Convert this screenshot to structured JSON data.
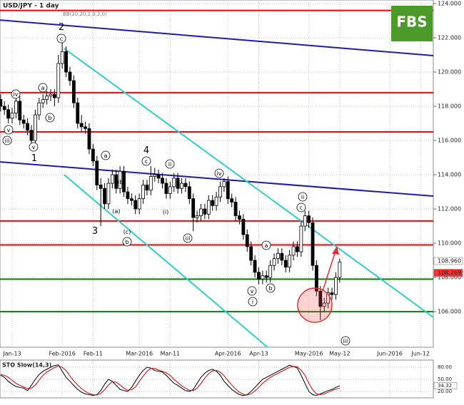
{
  "chart_data": {
    "type": "candlestick",
    "title": "USD/JPY - 1 day",
    "indicator_label": "BB(20,20,2,0,2,0)",
    "logo": "FBS",
    "candles": [
      [
        118.4,
        118.7,
        117.7,
        118.0
      ],
      [
        118.0,
        118.3,
        117.5,
        117.8
      ],
      [
        117.8,
        118.1,
        117.0,
        117.3
      ],
      [
        117.3,
        117.9,
        117.0,
        117.6
      ],
      [
        117.6,
        118.6,
        117.3,
        118.3
      ],
      [
        118.3,
        118.6,
        116.9,
        117.2
      ],
      [
        117.2,
        117.5,
        116.7,
        117.0
      ],
      [
        117.0,
        117.3,
        116.3,
        116.6
      ],
      [
        116.6,
        116.9,
        115.6,
        116.0
      ],
      [
        116.0,
        117.8,
        115.7,
        117.5
      ],
      [
        117.5,
        118.5,
        117.2,
        118.2
      ],
      [
        118.2,
        118.7,
        117.9,
        118.4
      ],
      [
        118.4,
        118.9,
        118.1,
        118.6
      ],
      [
        118.6,
        119.0,
        118.3,
        118.7
      ],
      [
        118.7,
        119.0,
        118.0,
        118.5
      ],
      [
        118.5,
        121.0,
        118.2,
        120.5
      ],
      [
        120.5,
        121.7,
        120.2,
        121.2
      ],
      [
        121.2,
        121.5,
        119.7,
        120.0
      ],
      [
        120.0,
        120.3,
        119.2,
        119.5
      ],
      [
        119.5,
        119.8,
        117.9,
        118.2
      ],
      [
        118.2,
        118.5,
        116.7,
        117.0
      ],
      [
        117.0,
        117.5,
        116.5,
        116.8
      ],
      [
        116.8,
        117.1,
        116.4,
        116.7
      ],
      [
        116.7,
        117.0,
        115.2,
        115.5
      ],
      [
        115.5,
        115.8,
        114.5,
        114.8
      ],
      [
        114.8,
        115.1,
        113.1,
        113.4
      ],
      [
        113.4,
        113.8,
        111.0,
        113.2
      ],
      [
        113.2,
        113.5,
        112.0,
        112.3
      ],
      [
        112.3,
        113.8,
        112.0,
        113.5
      ],
      [
        113.5,
        114.3,
        113.2,
        114.0
      ],
      [
        114.0,
        114.3,
        112.9,
        113.2
      ],
      [
        113.2,
        114.5,
        112.9,
        114.2
      ],
      [
        114.2,
        114.5,
        112.7,
        113.0
      ],
      [
        113.0,
        113.3,
        112.3,
        112.6
      ],
      [
        112.6,
        112.9,
        112.2,
        112.5
      ],
      [
        112.5,
        112.8,
        111.7,
        112.0
      ],
      [
        112.0,
        112.9,
        111.7,
        112.6
      ],
      [
        112.6,
        113.7,
        112.3,
        113.4
      ],
      [
        113.4,
        113.7,
        112.8,
        113.1
      ],
      [
        113.1,
        114.5,
        112.8,
        113.9
      ],
      [
        113.9,
        114.4,
        113.6,
        114.0
      ],
      [
        114.0,
        114.3,
        113.5,
        113.8
      ],
      [
        113.8,
        114.1,
        113.2,
        113.5
      ],
      [
        113.5,
        113.8,
        112.6,
        112.9
      ],
      [
        112.9,
        113.6,
        112.6,
        113.3
      ],
      [
        113.3,
        114.1,
        113.0,
        113.8
      ],
      [
        113.8,
        114.1,
        112.9,
        113.2
      ],
      [
        113.2,
        113.8,
        112.9,
        113.5
      ],
      [
        113.5,
        113.8,
        113.0,
        113.3
      ],
      [
        113.3,
        113.6,
        112.3,
        112.6
      ],
      [
        112.6,
        112.9,
        110.7,
        111.5
      ],
      [
        111.5,
        111.9,
        111.2,
        111.6
      ],
      [
        111.6,
        112.3,
        111.3,
        112.0
      ],
      [
        112.0,
        112.3,
        111.4,
        111.7
      ],
      [
        111.7,
        112.8,
        111.4,
        112.5
      ],
      [
        112.5,
        112.8,
        111.9,
        112.2
      ],
      [
        112.2,
        113.0,
        111.9,
        112.7
      ],
      [
        112.7,
        113.6,
        112.4,
        113.3
      ],
      [
        113.3,
        113.8,
        113.0,
        113.6
      ],
      [
        113.6,
        113.9,
        112.3,
        112.6
      ],
      [
        112.6,
        112.9,
        112.1,
        112.4
      ],
      [
        112.4,
        112.7,
        111.3,
        111.6
      ],
      [
        111.6,
        111.9,
        111.1,
        111.4
      ],
      [
        111.4,
        111.7,
        110.2,
        110.5
      ],
      [
        110.5,
        110.8,
        109.5,
        109.8
      ],
      [
        109.8,
        110.1,
        108.7,
        109.0
      ],
      [
        109.0,
        109.3,
        108.0,
        108.3
      ],
      [
        108.3,
        108.6,
        107.6,
        107.9
      ],
      [
        107.9,
        108.4,
        107.6,
        108.1
      ],
      [
        108.1,
        108.4,
        107.7,
        108.0
      ],
      [
        108.0,
        109.0,
        107.7,
        108.7
      ],
      [
        108.7,
        109.4,
        108.4,
        109.1
      ],
      [
        109.1,
        109.7,
        108.8,
        109.4
      ],
      [
        109.4,
        109.7,
        108.7,
        109.0
      ],
      [
        109.0,
        109.3,
        108.3,
        108.6
      ],
      [
        108.6,
        109.6,
        108.3,
        109.3
      ],
      [
        109.3,
        110.1,
        109.0,
        109.8
      ],
      [
        109.8,
        110.1,
        109.2,
        109.5
      ],
      [
        109.5,
        111.3,
        109.2,
        111.0
      ],
      [
        111.0,
        111.9,
        110.7,
        111.6
      ],
      [
        111.6,
        111.9,
        110.9,
        111.2
      ],
      [
        111.2,
        111.5,
        108.4,
        108.7
      ],
      [
        108.7,
        109.0,
        106.9,
        107.2
      ],
      [
        107.2,
        107.5,
        105.5,
        106.3
      ],
      [
        106.3,
        106.8,
        106.0,
        106.5
      ],
      [
        106.5,
        107.4,
        106.2,
        107.1
      ],
      [
        107.1,
        107.4,
        106.7,
        107.0
      ],
      [
        107.0,
        108.3,
        106.7,
        108.0
      ],
      [
        108.0,
        109.1,
        107.7,
        108.9
      ]
    ],
    "xlim": [
      -0.15,
      112.3
    ],
    "xticks": [
      {
        "value": 3,
        "label": "Jan-13"
      },
      {
        "value": 16,
        "label": "Feb-2016"
      },
      {
        "value": 24,
        "label": "Feb-11"
      },
      {
        "value": 36,
        "label": "Mar-2016"
      },
      {
        "value": 44,
        "label": "Mar-11"
      },
      {
        "value": 59,
        "label": "Apr-2016"
      },
      {
        "value": 67,
        "label": "Apr-13"
      },
      {
        "value": 80,
        "label": "May-2016"
      },
      {
        "value": 88,
        "label": "May-12"
      },
      {
        "value": 101,
        "label": "Jun-2016"
      },
      {
        "value": 109,
        "label": "Jun-12"
      }
    ],
    "ylim": [
      103.92,
      124.21
    ],
    "yticks": [
      {
        "value": 106,
        "label": "106.000"
      },
      {
        "value": 108,
        "label": "108.000"
      },
      {
        "value": 110,
        "label": "110.000"
      },
      {
        "value": 112,
        "label": "112.000"
      },
      {
        "value": 114,
        "label": "114.000"
      },
      {
        "value": 116,
        "label": "116.000"
      },
      {
        "value": 118,
        "label": "118.000"
      },
      {
        "value": 120,
        "label": "120.000"
      },
      {
        "value": 122,
        "label": "122.000"
      },
      {
        "value": 124,
        "label": "124.000"
      }
    ],
    "grid": true,
    "levels": [
      {
        "value": 123.6,
        "color": "#ff0000"
      },
      {
        "value": 118.8,
        "color": "#ff0000"
      },
      {
        "value": 116.5,
        "color": "#ff0000"
      },
      {
        "value": 111.3,
        "color": "#ff0000"
      },
      {
        "value": 109.9,
        "color": "#ff0000"
      },
      {
        "value": 107.9,
        "color": "#008000"
      },
      {
        "value": 106.0,
        "color": "#008000"
      }
    ],
    "trend_lines": [
      {
        "color": "#1c1ca8",
        "points": [
          [
            -0.15,
            123.04
          ],
          [
            112.3,
            120.96
          ]
        ]
      },
      {
        "color": "#1c1ca8",
        "points": [
          [
            -0.15,
            114.75
          ],
          [
            112.3,
            112.75
          ]
        ]
      },
      {
        "color": "#33cccc",
        "points": [
          [
            16.5,
            121.38
          ],
          [
            112.3,
            105.67
          ]
        ]
      },
      {
        "color": "#33cccc",
        "points": [
          [
            16.5,
            114.0
          ],
          [
            72.1,
            103.38
          ]
        ]
      }
    ],
    "price_tags": [
      {
        "value": 108.96,
        "label": "108.960",
        "color": "#ffffff"
      },
      {
        "value": 108.269,
        "label": "108.269",
        "color": "#ff3030"
      }
    ],
    "wave_labels": [
      "iv",
      "a",
      "b",
      "v",
      "iii",
      "v",
      "1",
      "2",
      "c",
      "a",
      "(b)",
      "(a)",
      "(c)",
      "b",
      "3",
      "4",
      "c",
      "ii",
      "(i)",
      "iii",
      "iv",
      "a",
      "b",
      "v",
      "i",
      "ii",
      "c",
      "iii"
    ],
    "stochastic": {
      "title": "STO Slow(14,3)",
      "ylim": [
        4,
        96
      ],
      "yticks": [
        {
          "value": 80,
          "label": "80.00"
        },
        {
          "value": 50,
          "label": "50.00"
        },
        {
          "value": 20,
          "label": "20.00"
        }
      ],
      "series": [
        {
          "name": "%K",
          "color": "#000000",
          "values": [
            60,
            55,
            45,
            38,
            32,
            30,
            28,
            22,
            35,
            50,
            62,
            70,
            75,
            80,
            84,
            86,
            70,
            55,
            45,
            35,
            25,
            18,
            14,
            12,
            10,
            12,
            22,
            38,
            50,
            45,
            35,
            25,
            22,
            20,
            30,
            45,
            60,
            72,
            80,
            78,
            72,
            70,
            68,
            60,
            50,
            40,
            35,
            28,
            22,
            20,
            25,
            40,
            55,
            65,
            72,
            75,
            70,
            60,
            45,
            35,
            25,
            18,
            12,
            10,
            12,
            20,
            30,
            40,
            50,
            55,
            60,
            65,
            70,
            75,
            80,
            85,
            82,
            78,
            60,
            40,
            20,
            12,
            10,
            14,
            18,
            22,
            25,
            30,
            34
          ]
        },
        {
          "name": "%D",
          "color": "#cc0000",
          "values": [
            62,
            60,
            55,
            48,
            40,
            35,
            31,
            27,
            28,
            36,
            48,
            60,
            68,
            74,
            79,
            83,
            80,
            72,
            58,
            46,
            36,
            27,
            20,
            15,
            12,
            11,
            15,
            24,
            36,
            44,
            43,
            36,
            28,
            23,
            24,
            31,
            45,
            58,
            70,
            77,
            77,
            73,
            70,
            66,
            60,
            50,
            42,
            34,
            28,
            23,
            22,
            28,
            40,
            53,
            64,
            71,
            72,
            68,
            59,
            47,
            36,
            26,
            18,
            13,
            11,
            14,
            21,
            30,
            40,
            48,
            55,
            60,
            65,
            70,
            75,
            80,
            82,
            81,
            73,
            60,
            40,
            24,
            14,
            12,
            14,
            18,
            22,
            26,
            28
          ]
        }
      ],
      "tag": {
        "value": 34.32,
        "label": "34.32"
      }
    }
  }
}
